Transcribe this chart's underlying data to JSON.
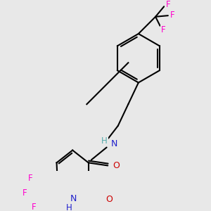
{
  "bg_color": "#e8e8e8",
  "bond_color": "#000000",
  "bond_width": 1.5,
  "atom_colors": {
    "N": "#2020cc",
    "O": "#cc0000",
    "F": "#ff00cc"
  },
  "figsize": [
    3.0,
    3.0
  ],
  "dpi": 100
}
